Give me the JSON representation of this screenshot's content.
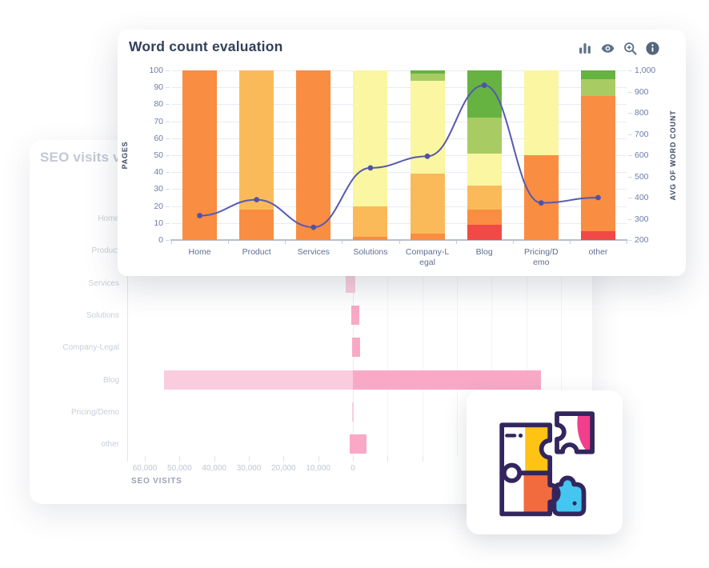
{
  "front_card": {
    "toolbar_icons": [
      {
        "name": "bar-chart-icon"
      },
      {
        "name": "eye-icon"
      },
      {
        "name": "zoom-in-icon"
      },
      {
        "name": "info-icon"
      }
    ],
    "icon_color": "#5E7187"
  },
  "back_card": {},
  "puzzle_card": {
    "illustration": "puzzle-pieces",
    "colors": {
      "outline": "#33265E",
      "yellow": "#FFC413",
      "pink": "#F23F8D",
      "orange": "#F26B3F",
      "cyan": "#45C6F0"
    }
  },
  "chart_data": [
    {
      "id": "word-count-evaluation",
      "type": "bar",
      "stacked": true,
      "title": "Word count evaluation",
      "categories": [
        "Home",
        "Product",
        "Services",
        "Solutions",
        "Company-Legal",
        "Blog",
        "Pricing/Demo",
        "other"
      ],
      "categories_display": [
        "Home",
        "Product",
        "Services",
        "Solutions",
        "Company-L\negal",
        "Blog",
        "Pricing/D\nemo",
        "other"
      ],
      "series": [
        {
          "name": "red",
          "color": "#F14945",
          "values": [
            0,
            0,
            0,
            0,
            0,
            9,
            0,
            5
          ]
        },
        {
          "name": "orange-dark",
          "color": "#F98D41",
          "values": [
            100,
            18,
            100,
            2,
            4,
            9,
            50,
            80
          ]
        },
        {
          "name": "orange-light",
          "color": "#FBBA59",
          "values": [
            0,
            82,
            0,
            18,
            35,
            14,
            0,
            0
          ]
        },
        {
          "name": "yellow",
          "color": "#FAF6A1",
          "values": [
            0,
            0,
            0,
            80,
            55,
            19,
            50,
            0
          ]
        },
        {
          "name": "green-light",
          "color": "#A8CB64",
          "values": [
            0,
            0,
            0,
            0,
            4,
            21,
            0,
            10
          ]
        },
        {
          "name": "green-dark",
          "color": "#66B342",
          "values": [
            0,
            0,
            0,
            0,
            2,
            28,
            0,
            5
          ]
        }
      ],
      "line_series": {
        "name": "avg-of-word-count",
        "color": "#565AAD",
        "axis": "right",
        "values": [
          315,
          390,
          260,
          540,
          595,
          930,
          375,
          400
        ]
      },
      "ylabel": "PAGES",
      "ylim": [
        0,
        100
      ],
      "yticks": [
        "100",
        "90",
        "80",
        "70",
        "60",
        "50",
        "40",
        "30",
        "20",
        "10",
        "0"
      ],
      "ytick_values": [
        100,
        90,
        80,
        70,
        60,
        50,
        40,
        30,
        20,
        10,
        0
      ],
      "y2label": "AVG OF WORD COUNT",
      "y2lim": [
        200,
        1000
      ],
      "y2ticks": [
        "1,000",
        "900",
        "800",
        "700",
        "600",
        "500",
        "400",
        "300",
        "200"
      ],
      "y2tick_values": [
        1000,
        900,
        800,
        700,
        600,
        500,
        400,
        300,
        200
      ],
      "grid": true,
      "grid_color": "#E7EBF4",
      "axis_line_color": "#B9C0CB",
      "tick_color": "#C6CCD7",
      "xlabel_color": "#5E6F91"
    },
    {
      "id": "seo-visits",
      "type": "bar-horizontal",
      "title": "SEO visits vs",
      "categories": [
        "Home",
        "Product",
        "Services",
        "Solutions",
        "Company-Legal",
        "Blog",
        "Pricing/Demo",
        "other"
      ],
      "xlabel": "SEO VISITS",
      "xticks": [
        "60,000",
        "50,000",
        "40,000",
        "30,000",
        "20,000",
        "10,000",
        "0"
      ],
      "xtick_values": [
        60000,
        50000,
        40000,
        30000,
        20000,
        10000,
        0
      ],
      "bars": [
        {
          "category": "Home",
          "hidden": true
        },
        {
          "category": "Product",
          "hidden": true
        },
        {
          "category": "Services",
          "left": 2000,
          "right": 700,
          "shade": "light"
        },
        {
          "category": "Solutions",
          "left": 400,
          "right": 1800,
          "shade": "dark"
        },
        {
          "category": "Company-Legal",
          "left": 300,
          "right": 2000,
          "shade": "dark"
        },
        {
          "category": "Blog",
          "left": 54500,
          "left_shade": "light",
          "right": 54300,
          "right_shade": "dark"
        },
        {
          "category": "Pricing/Demo",
          "left": 200,
          "right": 300,
          "shade": "light"
        },
        {
          "category": "other",
          "left": 900,
          "right": 3900,
          "shade": "dark"
        }
      ],
      "colors": {
        "light": "#FACDDE",
        "dark": "#F9A9C6"
      },
      "label_color": "#C9CEDA",
      "tick_label_color": "#BFC5D2",
      "xlabel_color": "#9AA2B3",
      "zero_line_color": "#E9EBF1",
      "grid_color": "#F4F5F8",
      "axis_color": "#E3E6EE"
    }
  ]
}
